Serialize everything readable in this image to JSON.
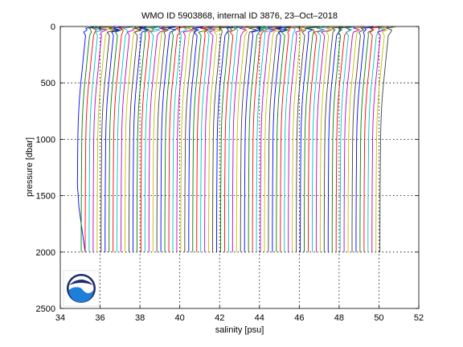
{
  "chart_data": {
    "type": "line",
    "title": "WMO ID 5903868, internal ID 3876, 23–Oct–2018",
    "xlabel": "salinity [psu]",
    "ylabel": "pressure [dbar]",
    "xlim": [
      34,
      52
    ],
    "ylim": [
      2500,
      0
    ],
    "y_reversed": true,
    "x_ticks": [
      34,
      36,
      38,
      40,
      42,
      44,
      46,
      48,
      50,
      52
    ],
    "y_ticks": [
      0,
      500,
      1000,
      1500,
      2000,
      2500
    ],
    "x_tick_labels": [
      "34",
      "36",
      "38",
      "40",
      "42",
      "44",
      "46",
      "48",
      "50",
      "52"
    ],
    "y_tick_labels": [
      "0",
      "500",
      "1000",
      "1500",
      "2000",
      "2500"
    ],
    "grid": "dotted",
    "series_description": "Waterfall of successive salinity profiles, each offset by about 0.2 psu",
    "profile_count": 77,
    "profile_offset_psu": 0.2,
    "first_profile_deep_salinity": 34.85,
    "surface_salinity_anomaly": 0.45,
    "max_pressure": 2000,
    "series_colors": [
      "#0000ff",
      "#008000",
      "#ff0000",
      "#00bfbf",
      "#bf00bf",
      "#bfbf00",
      "#3f3f3f"
    ]
  },
  "logo": {
    "text": "NOAA",
    "colors": {
      "navy": "#1b2a6b",
      "blue": "#1e7fd8",
      "light": "#8fd3ff"
    }
  }
}
